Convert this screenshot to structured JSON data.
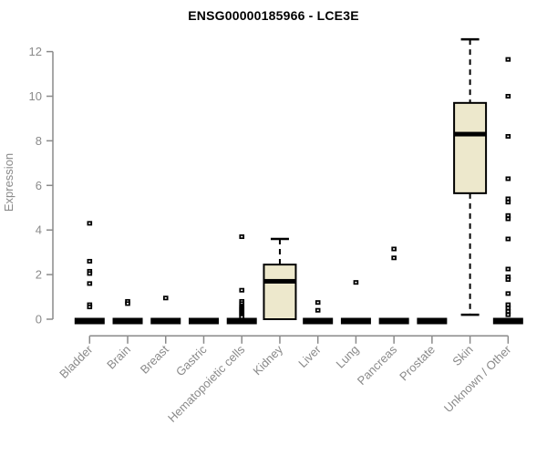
{
  "chart_data": {
    "type": "boxplot",
    "title": "ENSG00000185966 - LCE3E",
    "ylabel": "Expression",
    "ylim": [
      0,
      12.6
    ],
    "yticks": [
      0,
      2,
      4,
      6,
      8,
      10,
      12
    ],
    "grid": false,
    "legend": "none",
    "categories": [
      "Bladder",
      "Brain",
      "Breast",
      "Gastric",
      "Hematopoietic cells",
      "Kidney",
      "Liver",
      "Lung",
      "Pancreas",
      "Prostate",
      "Skin",
      "Unknown / Other"
    ],
    "boxes": [
      {
        "category": "Bladder",
        "q1": 0,
        "median": 0,
        "q3": 0,
        "whisker_low": 0,
        "whisker_high": 0,
        "outliers": [
          4.3,
          2.6,
          2.15,
          2.05,
          1.6,
          0.65,
          0.55
        ]
      },
      {
        "category": "Brain",
        "q1": 0,
        "median": 0,
        "q3": 0,
        "whisker_low": 0,
        "whisker_high": 0,
        "outliers": [
          0.8,
          0.7
        ]
      },
      {
        "category": "Breast",
        "q1": 0,
        "median": 0,
        "q3": 0,
        "whisker_low": 0,
        "whisker_high": 0,
        "outliers": [
          0.95
        ]
      },
      {
        "category": "Gastric",
        "q1": 0,
        "median": 0,
        "q3": 0,
        "whisker_low": 0,
        "whisker_high": 0,
        "outliers": []
      },
      {
        "category": "Hematopoietic cells",
        "q1": 0,
        "median": 0,
        "q3": 0,
        "whisker_low": 0,
        "whisker_high": 0,
        "outliers": [
          3.7,
          1.3,
          0.8,
          0.7,
          0.6,
          0.55,
          0.5,
          0.45,
          0.4,
          0.35,
          0.3,
          0.25,
          0.2,
          0.15,
          0.1
        ]
      },
      {
        "category": "Kidney",
        "q1": 0,
        "median": 1.7,
        "q3": 2.45,
        "whisker_low": 0,
        "whisker_high": 3.6,
        "outliers": []
      },
      {
        "category": "Liver",
        "q1": 0,
        "median": 0,
        "q3": 0,
        "whisker_low": 0,
        "whisker_high": 0,
        "outliers": [
          0.75,
          0.4
        ]
      },
      {
        "category": "Lung",
        "q1": 0,
        "median": 0,
        "q3": 0,
        "whisker_low": 0,
        "whisker_high": 0,
        "outliers": [
          1.65
        ]
      },
      {
        "category": "Pancreas",
        "q1": 0,
        "median": 0,
        "q3": 0,
        "whisker_low": 0,
        "whisker_high": 0,
        "outliers": [
          3.15,
          2.75
        ]
      },
      {
        "category": "Prostate",
        "q1": 0,
        "median": 0,
        "q3": 0,
        "whisker_low": 0,
        "whisker_high": 0,
        "outliers": []
      },
      {
        "category": "Skin",
        "q1": 5.65,
        "median": 8.3,
        "q3": 9.7,
        "whisker_low": 0.2,
        "whisker_high": 12.55,
        "outliers": []
      },
      {
        "category": "Unknown / Other",
        "q1": 0,
        "median": 0,
        "q3": 0,
        "whisker_low": 0,
        "whisker_high": 0,
        "outliers": [
          11.65,
          10.0,
          8.2,
          6.3,
          5.4,
          5.25,
          4.65,
          4.5,
          3.6,
          2.25,
          1.9,
          1.78,
          1.15,
          0.65,
          0.5,
          0.35,
          0.2
        ]
      }
    ],
    "colors": {
      "box_fill": "#ede8cc",
      "box_border": "#000000",
      "median": "#000000",
      "outlier": "#000000",
      "axis": "#8a8a8a",
      "title": "#000000",
      "background": "#ffffff"
    }
  }
}
